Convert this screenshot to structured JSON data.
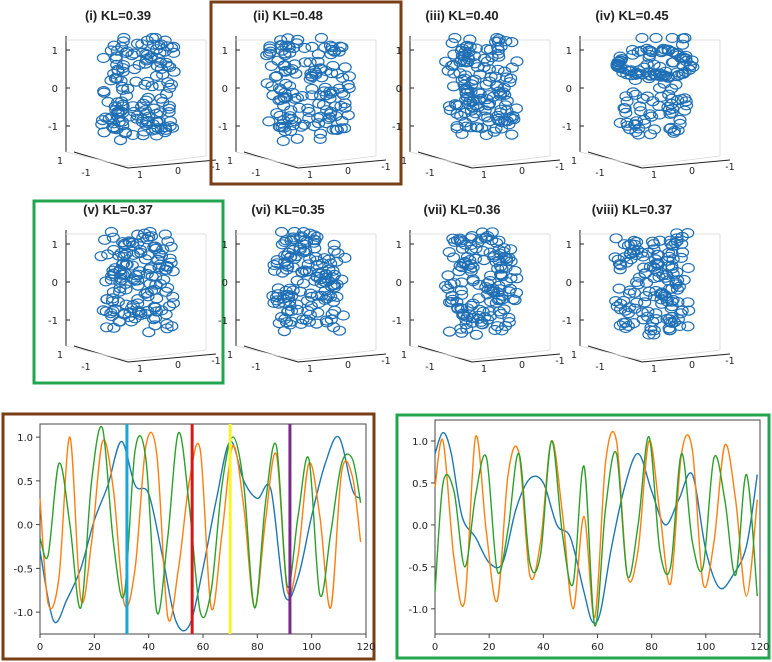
{
  "chart_data": [
    {
      "type": "scatter",
      "subtype": "3d-scatter-grid",
      "marker": "open-circle",
      "marker_color": "#1f6fb5",
      "axis_ticks": [
        "1",
        "0",
        "-1"
      ],
      "base_ticks": [
        "1",
        "-1",
        "1",
        "0",
        "-1"
      ],
      "panels": [
        {
          "title": "(i) KL=0.39",
          "highlight": "none"
        },
        {
          "title": "(ii) KL=0.48",
          "highlight": "brown"
        },
        {
          "title": "(iii) KL=0.40",
          "highlight": "none"
        },
        {
          "title": "(iv) KL=0.45",
          "highlight": "none"
        },
        {
          "title": "(v) KL=0.37",
          "highlight": "green"
        },
        {
          "title": "(vi) KL=0.35",
          "highlight": "none"
        },
        {
          "title": "(vii) KL=0.36",
          "highlight": "none"
        },
        {
          "title": "(viii) KL=0.37",
          "highlight": "none"
        }
      ]
    },
    {
      "type": "line",
      "name": "left-time-series",
      "frame_color": "#7a3e14",
      "xlim": [
        0,
        120
      ],
      "ylim": [
        -1.25,
        1.15
      ],
      "xticks": [
        "0",
        "20",
        "40",
        "60",
        "80",
        "100",
        "120"
      ],
      "yticks": [
        "1.0",
        "0.5",
        "0.0",
        "-0.5",
        "-1.0"
      ],
      "series": [
        {
          "name": "blue",
          "color": "#1f77b4",
          "x": [
            0,
            5,
            10,
            15,
            20,
            25,
            30,
            35,
            40,
            45,
            50,
            55,
            60,
            65,
            70,
            75,
            80,
            85,
            90,
            95,
            100,
            105,
            110,
            115,
            118
          ],
          "values": [
            -0.3,
            -1.1,
            -0.85,
            -0.5,
            0.05,
            0.45,
            0.95,
            0.45,
            0.35,
            -0.35,
            -1.1,
            -1.15,
            -0.5,
            0.3,
            0.95,
            0.5,
            0.3,
            0.4,
            -0.8,
            -0.6,
            0.1,
            0.7,
            1.0,
            0.4,
            0.3
          ]
        },
        {
          "name": "orange",
          "color": "#ff7f0e",
          "x": [
            0,
            3,
            7,
            11,
            15,
            19,
            23,
            27,
            31,
            35,
            39,
            43,
            47,
            51,
            55,
            59,
            63,
            67,
            71,
            75,
            79,
            83,
            87,
            91,
            95,
            99,
            103,
            107,
            111,
            115,
            118
          ],
          "values": [
            0.3,
            -0.9,
            -0.6,
            1.0,
            -0.85,
            -0.2,
            0.95,
            0.4,
            -0.9,
            -0.5,
            0.9,
            0.8,
            -1.05,
            -0.5,
            0.5,
            0.85,
            -0.95,
            -0.1,
            0.9,
            0.2,
            -0.95,
            0.05,
            0.8,
            -0.75,
            -0.35,
            0.7,
            0.1,
            -0.95,
            0.6,
            0.55,
            -0.2
          ]
        },
        {
          "name": "green",
          "color": "#2ca02c",
          "x": [
            0,
            3,
            7,
            11,
            15,
            19,
            23,
            27,
            31,
            35,
            39,
            43,
            47,
            51,
            55,
            59,
            63,
            67,
            71,
            75,
            79,
            83,
            87,
            91,
            95,
            99,
            103,
            107,
            111,
            115,
            118
          ],
          "values": [
            -0.15,
            -0.35,
            0.7,
            0.0,
            -0.95,
            0.5,
            1.1,
            -0.2,
            -0.8,
            0.85,
            0.75,
            -1.0,
            -0.15,
            1.05,
            0.2,
            -1.0,
            -0.75,
            0.45,
            1.0,
            0.45,
            -0.95,
            0.25,
            0.9,
            -0.7,
            0.1,
            0.75,
            -0.8,
            -0.1,
            0.7,
            0.75,
            0.25
          ]
        }
      ],
      "vlines": [
        {
          "x": 32,
          "color": "#1aa7d6"
        },
        {
          "x": 56,
          "color": "#d61a1a"
        },
        {
          "x": 70,
          "color": "#f5f52a"
        },
        {
          "x": 92,
          "color": "#7a2a8a"
        }
      ]
    },
    {
      "type": "line",
      "name": "right-time-series",
      "frame_color": "#23a44f",
      "xlim": [
        0,
        120
      ],
      "ylim": [
        -1.3,
        1.25
      ],
      "xticks": [
        "0",
        "20",
        "40",
        "60",
        "80",
        "100",
        "120"
      ],
      "yticks": [
        "1.0",
        "0.5",
        "0.0",
        "-0.5",
        "-1.0"
      ],
      "series": [
        {
          "name": "blue",
          "color": "#1f77b4",
          "x": [
            0,
            3,
            6,
            10,
            15,
            20,
            25,
            30,
            35,
            40,
            45,
            50,
            55,
            58,
            61,
            65,
            70,
            75,
            80,
            85,
            90,
            95,
            100,
            105,
            110,
            115,
            119
          ],
          "values": [
            0.85,
            1.1,
            0.85,
            0.1,
            -0.15,
            -0.45,
            -0.45,
            0.2,
            0.55,
            0.5,
            0.0,
            -0.15,
            -0.8,
            -1.15,
            -1.05,
            -0.3,
            0.45,
            0.85,
            0.4,
            0.0,
            0.3,
            0.6,
            -0.3,
            -0.75,
            -0.6,
            -0.25,
            0.6
          ]
        },
        {
          "name": "orange",
          "color": "#ff7f0e",
          "x": [
            0,
            3,
            7,
            11,
            15,
            19,
            23,
            27,
            31,
            35,
            39,
            43,
            47,
            51,
            55,
            59,
            63,
            67,
            71,
            75,
            79,
            83,
            87,
            91,
            95,
            99,
            103,
            107,
            111,
            115,
            119
          ],
          "values": [
            0.45,
            1.0,
            -0.4,
            -0.9,
            1.05,
            -0.1,
            -0.9,
            0.6,
            0.85,
            -0.6,
            -0.2,
            1.0,
            0.15,
            -1.0,
            0.1,
            -1.1,
            0.75,
            1.0,
            -0.6,
            -0.3,
            1.0,
            0.15,
            -0.7,
            0.85,
            0.9,
            -0.7,
            -0.2,
            0.95,
            0.3,
            -0.85,
            0.3
          ]
        },
        {
          "name": "green",
          "color": "#2ca02c",
          "x": [
            0,
            3,
            7,
            11,
            15,
            19,
            23,
            27,
            31,
            35,
            39,
            43,
            47,
            51,
            55,
            59,
            63,
            67,
            71,
            75,
            79,
            83,
            87,
            91,
            95,
            99,
            103,
            107,
            111,
            115,
            119
          ],
          "values": [
            -0.8,
            0.5,
            0.4,
            -0.5,
            0.35,
            0.8,
            -0.55,
            -0.05,
            0.85,
            -0.45,
            -0.35,
            1.0,
            -0.1,
            -0.7,
            0.7,
            -1.2,
            0.2,
            0.85,
            -0.6,
            0.0,
            1.05,
            -0.3,
            -0.5,
            0.85,
            -0.2,
            -0.5,
            0.8,
            0.3,
            -0.6,
            0.6,
            -0.85
          ]
        }
      ]
    }
  ]
}
